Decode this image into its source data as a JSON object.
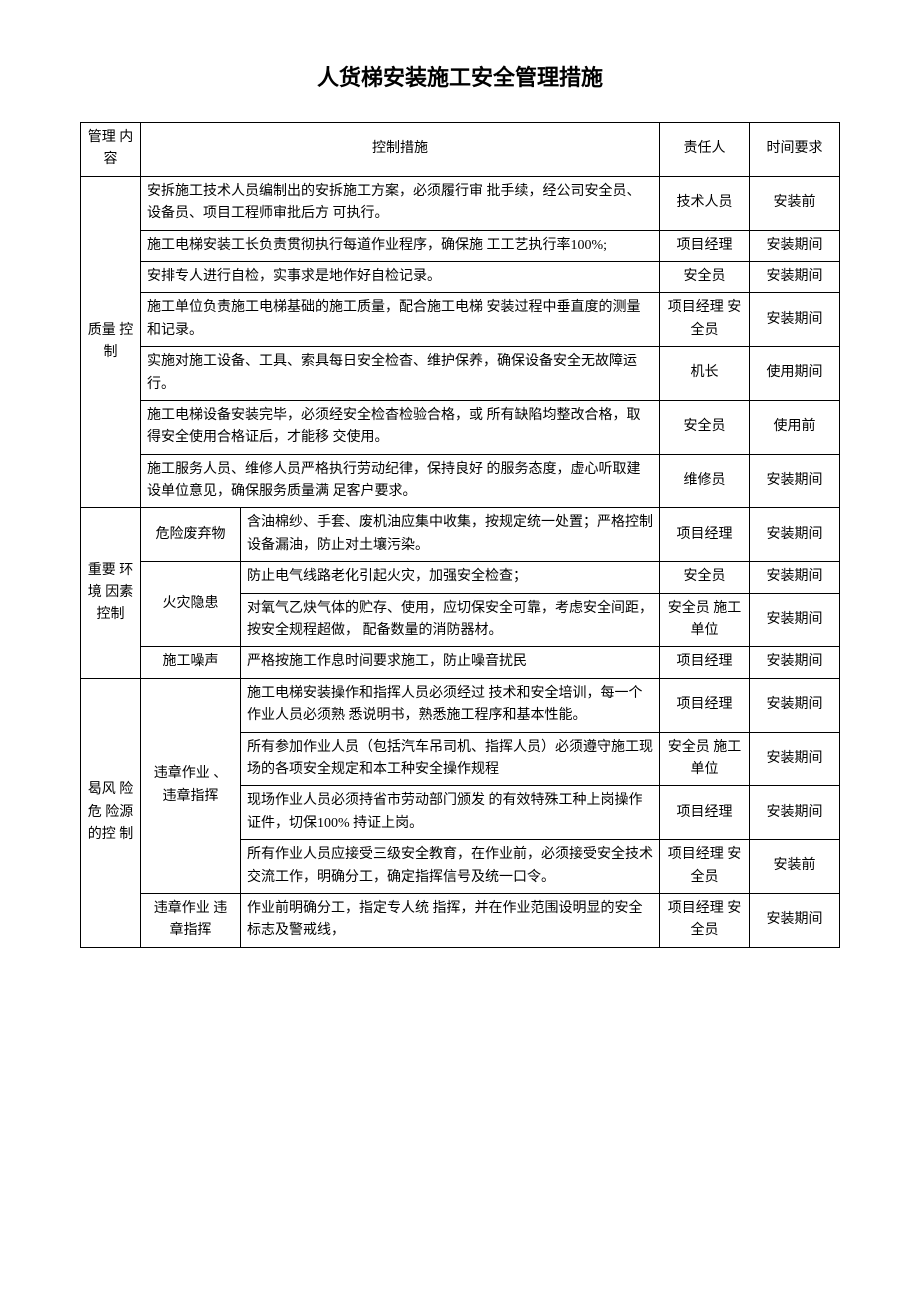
{
  "title": "人货梯安装施工安全管理措施",
  "headers": {
    "category": "管理 内容",
    "measure": "控制措施",
    "responsible": "责任人",
    "time": "时间要求"
  },
  "section1": {
    "category": "质量 控制",
    "rows": [
      {
        "measure": "安拆施工技术人员编制出的安拆施工方案，必须履行审 批手续，经公司安全员、设备员、项目工程师审批后方 可执行。",
        "responsible": "技术人员",
        "time": "安装前"
      },
      {
        "measure": "施工电梯安装工长负责贯彻执行每道作业程序，确保施 工工艺执行率100%;",
        "responsible": "项目经理",
        "time": "安装期间"
      },
      {
        "measure": "安排专人进行自检，实事求是地作好自检记录。",
        "responsible": "安全员",
        "time": "安装期间"
      },
      {
        "measure": "施工单位负责施工电梯基础的施工质量，配合施工电梯 安装过程中垂直度的测量和记录。",
        "responsible": "项目经理 安全员",
        "time": "安装期间"
      },
      {
        "measure": "实施对施工设备、工具、索具每日安全检杳、维护保养，确保设备安全无故障运行。",
        "responsible": "机长",
        "time": "使用期间"
      },
      {
        "measure": "施工电梯设备安装完毕，必须经安全检杳检验合格，或 所有缺陷均整改合格，取得安全使用合格证后，才能移 交使用。",
        "responsible": "安全员",
        "time": "使用前"
      },
      {
        "measure": "施工服务人员、维修人员严格执行劳动纪律，保持良好 的服务态度，虚心听取建设单位意见，确保服务质量满 足客户要求。",
        "responsible": "维修员",
        "time": "安装期间"
      }
    ]
  },
  "section2": {
    "category": "重要 环境 因素控制",
    "sub1": {
      "label": "危险废弃物",
      "measure": "含油棉纱、手套、废机油应集中收集，按规定统一处置；严格控制设备漏油，防止对土壤污染。",
      "responsible": "项目经理",
      "time": "安装期间"
    },
    "sub2": {
      "label": "火灾隐患",
      "rows": [
        {
          "measure": "防止电气线路老化引起火灾，加强安全检查；",
          "responsible": "安全员",
          "time": "安装期间"
        },
        {
          "measure": "对氧气乙炔气体的贮存、使用，应切保安全可靠，考虑安全间距，按安全规程超做，  配备数量的消防器材。",
          "responsible": "安全员 施工单位",
          "time": "安装期间"
        }
      ]
    },
    "sub3": {
      "label": "施工噪声",
      "measure": "严格按施工作息时间要求施工，防止噪音扰民",
      "responsible": "项目经理",
      "time": "安装期间"
    }
  },
  "section3": {
    "category": "曷风 险危 险源的控 制",
    "sub1": {
      "label": "违章作业 、违章指挥",
      "rows": [
        {
          "measure": "施工电梯安装操作和指挥人员必须经过 技术和安全培训，每一个作业人员必须熟 悉说明书，熟悉施工程序和基本性能。",
          "responsible": "项目经理",
          "time": "安装期间"
        },
        {
          "measure": "所有参加作业人员（包括汽车吊司机、指挥人员）必须遵守施工现场的各项安全规定和本工种安全操作规程",
          "responsible": "安全员 施工单位",
          "time": "安装期间"
        },
        {
          "measure": "现场作业人员必须持省市劳动部门颁发 的有效特殊工种上岗操作证件，切保100% 持证上岗。",
          "responsible": "项目经理",
          "time": "安装期间"
        },
        {
          "measure": "所有作业人员应接受三级安全教育，在作业前，必须接受安全技术交流工作，明确分工，确定指挥信号及统一口令。",
          "responsible": "项目经理 安全员",
          "time": "安装前"
        }
      ]
    },
    "sub2": {
      "label": "违章作业 违章指挥",
      "measure": "作业前明确分工，指定专人统 指挥，并在作业范围设明显的安全标志及警戒线，",
      "responsible": "项目经理 安全员",
      "time": "安装期间"
    }
  }
}
